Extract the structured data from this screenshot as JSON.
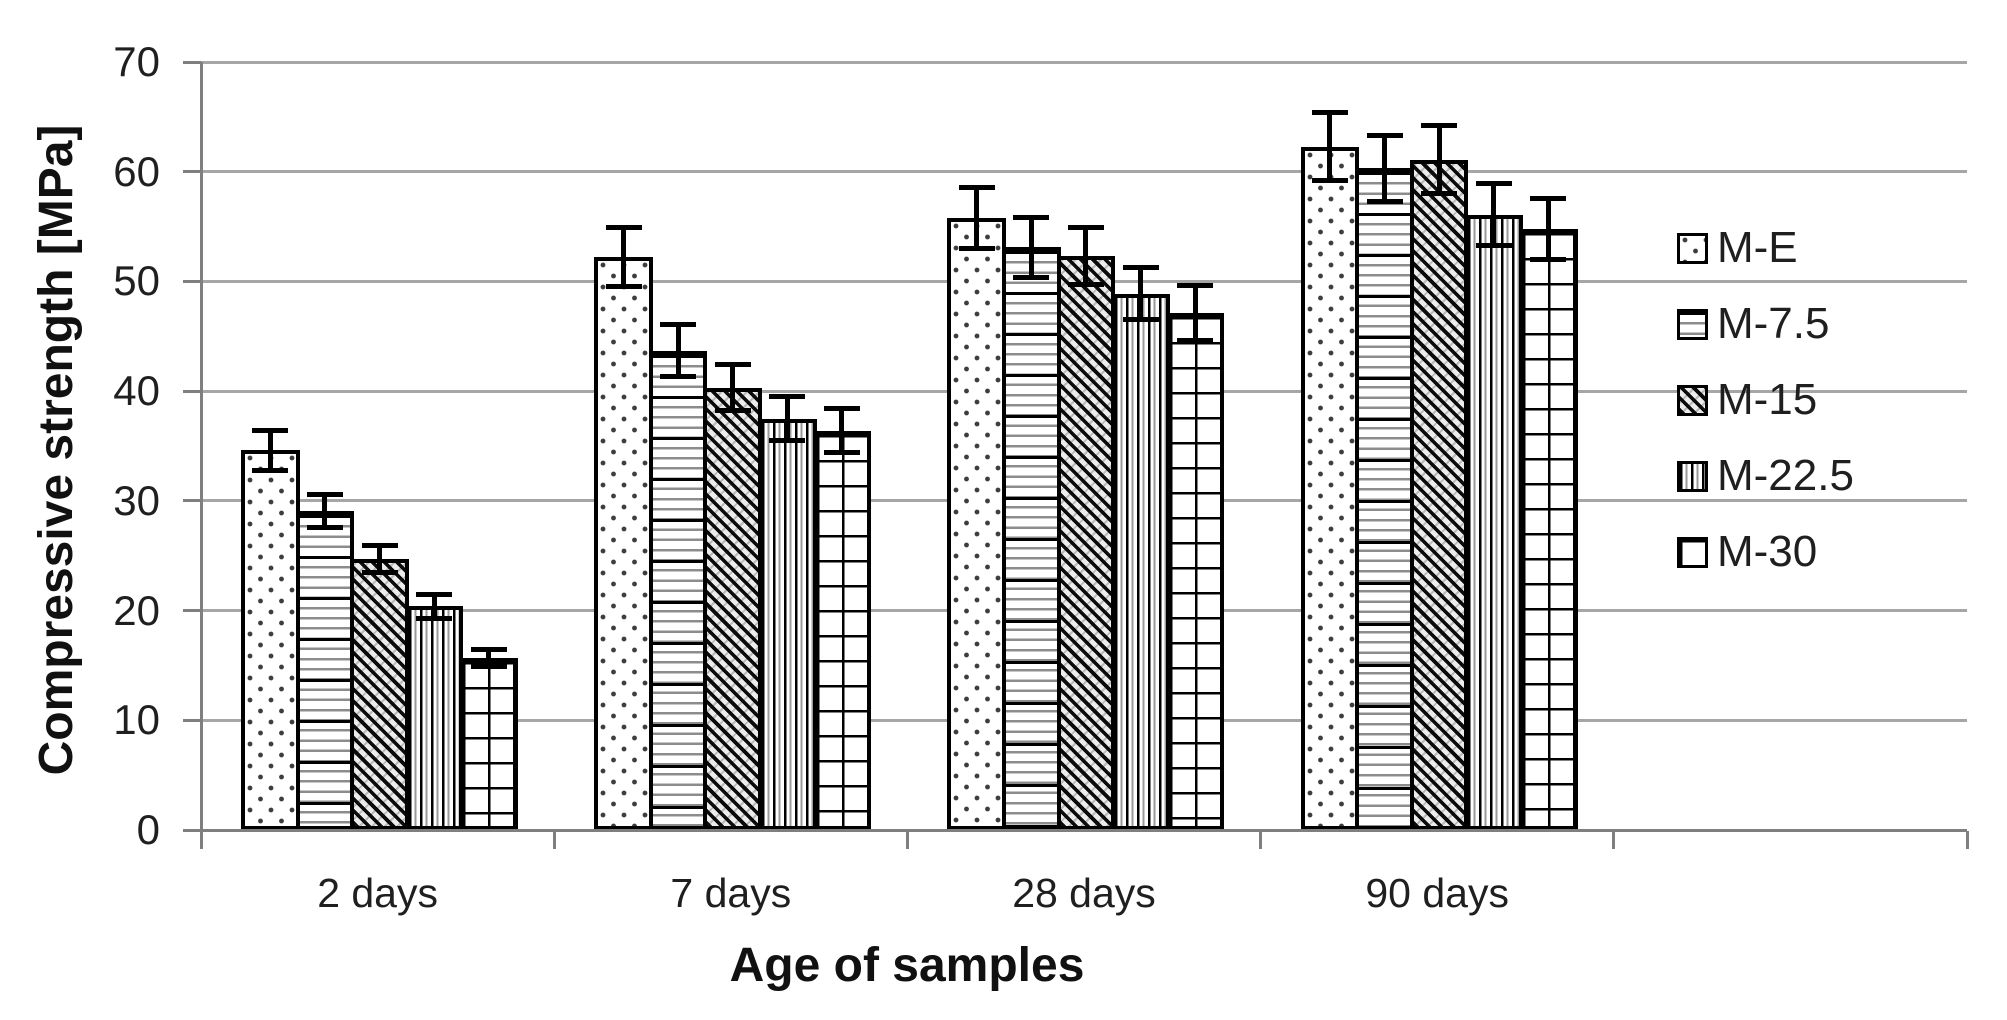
{
  "figure": {
    "kind": "grouped-bar-chart-with-error-bars",
    "background": "#ffffff"
  },
  "chart_data": {
    "type": "bar",
    "title": "",
    "xlabel": "Age of samples",
    "ylabel": "Compressive strength [MPa]",
    "categories": [
      "2 days",
      "7 days",
      "28 days",
      "90 days"
    ],
    "series": [
      {
        "name": "M-E",
        "pattern": "dots",
        "values": [
          34.6,
          52.2,
          55.8,
          62.3
        ],
        "errors": [
          1.8,
          2.7,
          2.8,
          3.1
        ]
      },
      {
        "name": "M-7.5",
        "pattern": "hlines",
        "values": [
          29.1,
          43.7,
          53.1,
          60.3
        ],
        "errors": [
          1.5,
          2.4,
          2.7,
          3.0
        ]
      },
      {
        "name": "M-15",
        "pattern": "diag",
        "values": [
          24.7,
          40.3,
          52.3,
          61.1
        ],
        "errors": [
          1.2,
          2.1,
          2.6,
          3.1
        ]
      },
      {
        "name": "M-22.5",
        "pattern": "vlines",
        "values": [
          20.4,
          37.5,
          48.9,
          56.1
        ],
        "errors": [
          1.1,
          2.0,
          2.4,
          2.8
        ]
      },
      {
        "name": "M-30",
        "pattern": "grid",
        "values": [
          15.7,
          36.4,
          47.1,
          54.8
        ],
        "errors": [
          0.8,
          2.0,
          2.5,
          2.8
        ]
      }
    ],
    "ylim": [
      0,
      70
    ],
    "ytick_interval": 10,
    "grid": true,
    "error_bars": true,
    "legend_position": "right-overlay",
    "colors": {
      "axis": "#7f7f7f",
      "gridline": "#a6a6a6",
      "bar_fill": "#ffffff",
      "bar_outline": "#000000",
      "text": "#1f1f1f"
    }
  }
}
